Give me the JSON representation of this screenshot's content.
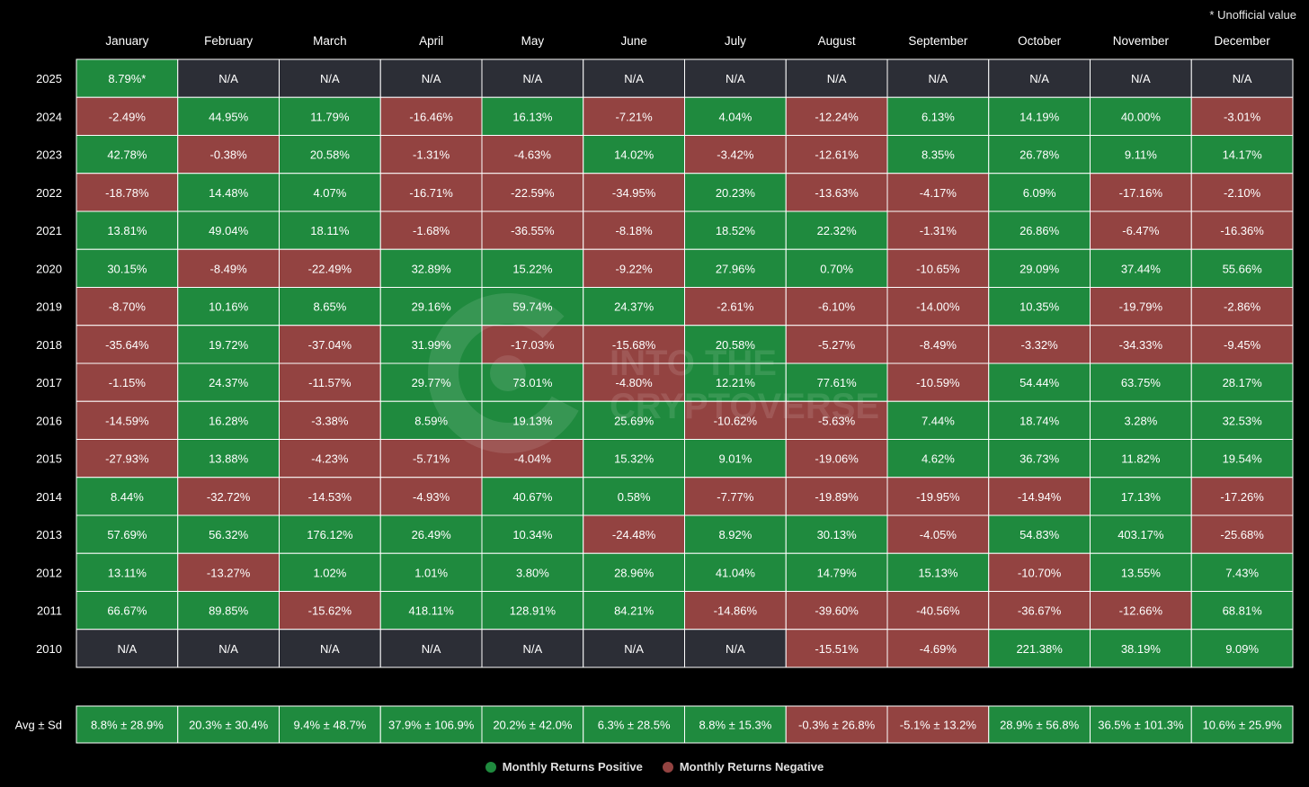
{
  "note": "* Unofficial value",
  "watermark": {
    "line1": "INTO THE",
    "line2": "CRYPTOVERSE"
  },
  "colors": {
    "positive": "#1f8a3e",
    "negative": "#934341",
    "na": "#2c2e36",
    "background": "#000000"
  },
  "legend": {
    "positive": "Monthly Returns Positive",
    "negative": "Monthly Returns Negative"
  },
  "chart_data": {
    "type": "heatmap",
    "title": "",
    "months": [
      "January",
      "February",
      "March",
      "April",
      "May",
      "June",
      "July",
      "August",
      "September",
      "October",
      "November",
      "December"
    ],
    "years": [
      "2025",
      "2024",
      "2023",
      "2022",
      "2021",
      "2020",
      "2019",
      "2018",
      "2017",
      "2016",
      "2015",
      "2014",
      "2013",
      "2012",
      "2011",
      "2010"
    ],
    "rows": [
      [
        "8.79%*",
        "N/A",
        "N/A",
        "N/A",
        "N/A",
        "N/A",
        "N/A",
        "N/A",
        "N/A",
        "N/A",
        "N/A",
        "N/A"
      ],
      [
        "-2.49%",
        "44.95%",
        "11.79%",
        "-16.46%",
        "16.13%",
        "-7.21%",
        "4.04%",
        "-12.24%",
        "6.13%",
        "14.19%",
        "40.00%",
        "-3.01%"
      ],
      [
        "42.78%",
        "-0.38%",
        "20.58%",
        "-1.31%",
        "-4.63%",
        "14.02%",
        "-3.42%",
        "-12.61%",
        "8.35%",
        "26.78%",
        "9.11%",
        "14.17%"
      ],
      [
        "-18.78%",
        "14.48%",
        "4.07%",
        "-16.71%",
        "-22.59%",
        "-34.95%",
        "20.23%",
        "-13.63%",
        "-4.17%",
        "6.09%",
        "-17.16%",
        "-2.10%"
      ],
      [
        "13.81%",
        "49.04%",
        "18.11%",
        "-1.68%",
        "-36.55%",
        "-8.18%",
        "18.52%",
        "22.32%",
        "-1.31%",
        "26.86%",
        "-6.47%",
        "-16.36%"
      ],
      [
        "30.15%",
        "-8.49%",
        "-22.49%",
        "32.89%",
        "15.22%",
        "-9.22%",
        "27.96%",
        "0.70%",
        "-10.65%",
        "29.09%",
        "37.44%",
        "55.66%"
      ],
      [
        "-8.70%",
        "10.16%",
        "8.65%",
        "29.16%",
        "59.74%",
        "24.37%",
        "-2.61%",
        "-6.10%",
        "-14.00%",
        "10.35%",
        "-19.79%",
        "-2.86%"
      ],
      [
        "-35.64%",
        "19.72%",
        "-37.04%",
        "31.99%",
        "-17.03%",
        "-15.68%",
        "20.58%",
        "-5.27%",
        "-8.49%",
        "-3.32%",
        "-34.33%",
        "-9.45%"
      ],
      [
        "-1.15%",
        "24.37%",
        "-11.57%",
        "29.77%",
        "73.01%",
        "-4.80%",
        "12.21%",
        "77.61%",
        "-10.59%",
        "54.44%",
        "63.75%",
        "28.17%"
      ],
      [
        "-14.59%",
        "16.28%",
        "-3.38%",
        "8.59%",
        "19.13%",
        "25.69%",
        "-10.62%",
        "-5.63%",
        "7.44%",
        "18.74%",
        "3.28%",
        "32.53%"
      ],
      [
        "-27.93%",
        "13.88%",
        "-4.23%",
        "-5.71%",
        "-4.04%",
        "15.32%",
        "9.01%",
        "-19.06%",
        "4.62%",
        "36.73%",
        "11.82%",
        "19.54%"
      ],
      [
        "8.44%",
        "-32.72%",
        "-14.53%",
        "-4.93%",
        "40.67%",
        "0.58%",
        "-7.77%",
        "-19.89%",
        "-19.95%",
        "-14.94%",
        "17.13%",
        "-17.26%"
      ],
      [
        "57.69%",
        "56.32%",
        "176.12%",
        "26.49%",
        "10.34%",
        "-24.48%",
        "8.92%",
        "30.13%",
        "-4.05%",
        "54.83%",
        "403.17%",
        "-25.68%"
      ],
      [
        "13.11%",
        "-13.27%",
        "1.02%",
        "1.01%",
        "3.80%",
        "28.96%",
        "41.04%",
        "14.79%",
        "15.13%",
        "-10.70%",
        "13.55%",
        "7.43%"
      ],
      [
        "66.67%",
        "89.85%",
        "-15.62%",
        "418.11%",
        "128.91%",
        "84.21%",
        "-14.86%",
        "-39.60%",
        "-40.56%",
        "-36.67%",
        "-12.66%",
        "68.81%"
      ],
      [
        "N/A",
        "N/A",
        "N/A",
        "N/A",
        "N/A",
        "N/A",
        "N/A",
        "-15.51%",
        "-4.69%",
        "221.38%",
        "38.19%",
        "9.09%"
      ]
    ],
    "avg_label": "Avg ± Sd",
    "avg": [
      "8.8% ± 28.9%",
      "20.3% ± 30.4%",
      "9.4% ± 48.7%",
      "37.9% ± 106.9%",
      "20.2% ± 42.0%",
      "6.3% ± 28.5%",
      "8.8% ± 15.3%",
      "-0.3% ± 26.8%",
      "-5.1% ± 13.2%",
      "28.9% ± 56.8%",
      "36.5% ± 101.3%",
      "10.6% ± 25.9%"
    ]
  }
}
